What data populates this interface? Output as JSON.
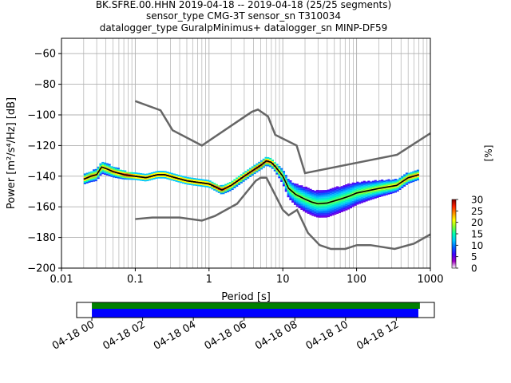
{
  "title_lines": [
    "BK.SFRE.00.HHN   2019-04-18 -- 2019-04-18  (25/25 segments)",
    "sensor_type CMG-3T sensor_sn T310034",
    "datalogger_type GuralpMinimus+ datalogger_sn MINP-DF59"
  ],
  "chart_data": {
    "type": "heatmap",
    "xlabel": "Period [s]",
    "ylabel": "Power [m²/s⁴/Hz] [dB]",
    "x_scale": "log",
    "xlim": [
      0.01,
      1000
    ],
    "ylim": [
      -200,
      -50
    ],
    "grid": true,
    "x_ticks": [
      {
        "value": 0.01,
        "label": "0.01"
      },
      {
        "value": 0.1,
        "label": "0.1"
      },
      {
        "value": 1,
        "label": "1"
      },
      {
        "value": 10,
        "label": "10"
      },
      {
        "value": 100,
        "label": "100"
      },
      {
        "value": 1000,
        "label": "1000"
      }
    ],
    "y_ticks": [
      {
        "value": -60,
        "label": "−60"
      },
      {
        "value": -80,
        "label": "−80"
      },
      {
        "value": -100,
        "label": "−100"
      },
      {
        "value": -120,
        "label": "−120"
      },
      {
        "value": -140,
        "label": "−140"
      },
      {
        "value": -160,
        "label": "−160"
      },
      {
        "value": -180,
        "label": "−180"
      },
      {
        "value": -200,
        "label": "−200"
      }
    ],
    "noise_model_high": [
      [
        0.1,
        -91
      ],
      [
        0.22,
        -97
      ],
      [
        0.32,
        -110
      ],
      [
        0.8,
        -120
      ],
      [
        3.8,
        -98
      ],
      [
        4.6,
        -96.5
      ],
      [
        6.3,
        -101
      ],
      [
        7.9,
        -113
      ],
      [
        15.4,
        -120
      ],
      [
        20,
        -138
      ],
      [
        354,
        -126
      ],
      [
        1000,
        -112
      ]
    ],
    "noise_model_low": [
      [
        0.1,
        -168
      ],
      [
        0.17,
        -167
      ],
      [
        0.4,
        -167
      ],
      [
        0.8,
        -169
      ],
      [
        1.2,
        -166
      ],
      [
        2.4,
        -158
      ],
      [
        4.3,
        -143
      ],
      [
        5,
        -141
      ],
      [
        6,
        -141
      ],
      [
        10,
        -162
      ],
      [
        12,
        -165.5
      ],
      [
        15.6,
        -162
      ],
      [
        21.9,
        -177
      ],
      [
        31.6,
        -185
      ],
      [
        45,
        -187.5
      ],
      [
        70,
        -187.5
      ],
      [
        101,
        -185
      ],
      [
        154,
        -185
      ],
      [
        328,
        -187.5
      ],
      [
        600,
        -184
      ],
      [
        1000,
        -178
      ]
    ],
    "mean_psd": [
      [
        0.02,
        -142
      ],
      [
        0.025,
        -140
      ],
      [
        0.03,
        -139
      ],
      [
        0.035,
        -134
      ],
      [
        0.04,
        -135
      ],
      [
        0.05,
        -137
      ],
      [
        0.07,
        -139
      ],
      [
        0.1,
        -140
      ],
      [
        0.14,
        -141
      ],
      [
        0.2,
        -139
      ],
      [
        0.25,
        -139
      ],
      [
        0.35,
        -141
      ],
      [
        0.5,
        -143
      ],
      [
        0.7,
        -144
      ],
      [
        1,
        -145
      ],
      [
        1.5,
        -149
      ],
      [
        2,
        -146
      ],
      [
        3,
        -140
      ],
      [
        4,
        -136
      ],
      [
        5,
        -133
      ],
      [
        6,
        -130
      ],
      [
        7,
        -131
      ],
      [
        8,
        -134
      ],
      [
        10,
        -140
      ],
      [
        12,
        -148
      ],
      [
        15,
        -152
      ],
      [
        20,
        -155
      ],
      [
        25,
        -157
      ],
      [
        30,
        -158
      ],
      [
        40,
        -157.5
      ],
      [
        60,
        -155
      ],
      [
        80,
        -153
      ],
      [
        100,
        -151
      ],
      [
        200,
        -148
      ],
      [
        350,
        -146
      ],
      [
        500,
        -141
      ],
      [
        700,
        -139
      ]
    ],
    "psd_band_half_width_db": [
      [
        0.02,
        3
      ],
      [
        0.035,
        4
      ],
      [
        0.1,
        2
      ],
      [
        0.5,
        2
      ],
      [
        1,
        2
      ],
      [
        2,
        3
      ],
      [
        5,
        2.5
      ],
      [
        8,
        3
      ],
      [
        12,
        6
      ],
      [
        20,
        8
      ],
      [
        40,
        9
      ],
      [
        80,
        8
      ],
      [
        150,
        6
      ],
      [
        350,
        4
      ],
      [
        700,
        3
      ]
    ],
    "colorbar": {
      "label": "[%]",
      "min": 0,
      "max": 30,
      "ticks": [
        {
          "value": 0,
          "label": "0"
        },
        {
          "value": 5,
          "label": "5"
        },
        {
          "value": 10,
          "label": "10"
        },
        {
          "value": 15,
          "label": "15"
        },
        {
          "value": 20,
          "label": "20"
        },
        {
          "value": 25,
          "label": "25"
        },
        {
          "value": 30,
          "label": "30"
        }
      ],
      "colors": [
        "#ffffff",
        "#9f00c0",
        "#4000ff",
        "#0060ff",
        "#00c8ff",
        "#00ffb0",
        "#80ff30",
        "#ffff00",
        "#ff9000",
        "#ff2000",
        "#800000"
      ]
    },
    "coverage": {
      "bars": [
        {
          "color": "#008000",
          "start": 0.0,
          "end": 12.93
        },
        {
          "color": "#0000ff",
          "start": 0.0,
          "end": 12.87
        }
      ],
      "xlim": [
        -0.6,
        13.5
      ],
      "ticks": [
        {
          "value": 0,
          "label": "04-18 00"
        },
        {
          "value": 2,
          "label": "04-18 02"
        },
        {
          "value": 4,
          "label": "04-18 04"
        },
        {
          "value": 6,
          "label": "04-18 06"
        },
        {
          "value": 8,
          "label": "04-18 08"
        },
        {
          "value": 10,
          "label": "04-18 10"
        },
        {
          "value": 12,
          "label": "04-18 12"
        }
      ]
    },
    "colors": {
      "noise_model": "#666666",
      "mean": "#000000",
      "grid": "#b0b0b0"
    }
  }
}
